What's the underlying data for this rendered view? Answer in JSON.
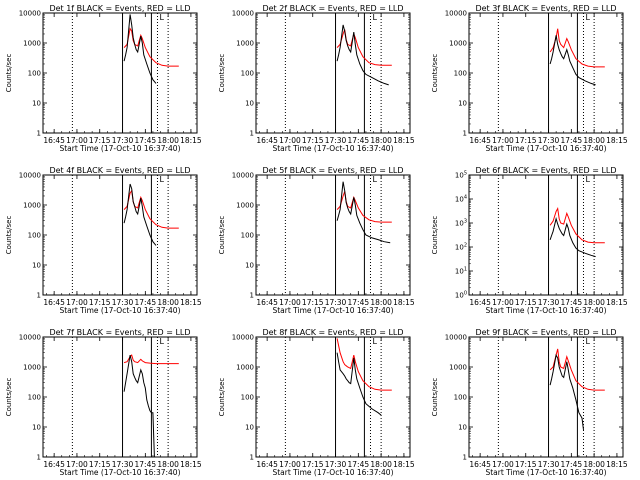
{
  "chart_data": [
    {
      "type": "line",
      "title": "Det 1f BLACK = Events, RED = LLD",
      "xlabel": "Start Time (17-Oct-10 16:37:40)",
      "ylabel": "Counts/sec",
      "x_ticks": [
        "16:45",
        "17:00",
        "17:15",
        "17:30",
        "17:45",
        "18:00",
        "18:15"
      ],
      "y_ticks": [
        "1",
        "10",
        "100",
        "1000",
        "10000"
      ],
      "ylim": [
        1,
        10000
      ],
      "yscale": "log",
      "corner_label": "L",
      "vlines_solid": [
        "17:30",
        "17:49"
      ],
      "vlines_dotted": [
        "16:57",
        "17:53",
        "18:00"
      ],
      "series": [
        {
          "color": "#000000",
          "x": [
            "17:31",
            "17:32",
            "17:33",
            "17:35",
            "17:36",
            "17:37",
            "17:38",
            "17:39",
            "17:40",
            "17:42",
            "17:43",
            "17:44",
            "17:46",
            "17:48",
            "17:50",
            "17:52"
          ],
          "y": [
            250,
            400,
            700,
            9000,
            4000,
            1500,
            900,
            600,
            500,
            1700,
            1000,
            400,
            200,
            100,
            60,
            45
          ]
        },
        {
          "color": "#ff0000",
          "x": [
            "17:31",
            "17:33",
            "17:35",
            "17:36",
            "17:37",
            "17:38",
            "17:40",
            "17:42",
            "17:43",
            "17:45",
            "17:48",
            "17:52",
            "17:56",
            "18:00",
            "18:04",
            "18:07"
          ],
          "y": [
            700,
            900,
            3000,
            2500,
            1200,
            900,
            800,
            1800,
            1400,
            700,
            350,
            220,
            180,
            170,
            170,
            170
          ]
        }
      ]
    },
    {
      "type": "line",
      "title": "Det 2f BLACK = Events, RED = LLD",
      "xlabel": "Start Time (17-Oct-10 16:37:40)",
      "ylabel": "Counts/sec",
      "x_ticks": [
        "16:45",
        "17:00",
        "17:15",
        "17:30",
        "17:45",
        "18:00",
        "18:15"
      ],
      "y_ticks": [
        "1",
        "10",
        "100",
        "1000",
        "10000"
      ],
      "ylim": [
        1,
        10000
      ],
      "yscale": "log",
      "corner_label": "L",
      "vlines_solid": [
        "17:30",
        "17:49"
      ],
      "vlines_dotted": [
        "16:57",
        "17:53",
        "18:00"
      ],
      "series": [
        {
          "color": "#000000",
          "x": [
            "17:31",
            "17:32",
            "17:33",
            "17:35",
            "17:36",
            "17:37",
            "17:38",
            "17:39",
            "17:40",
            "17:42",
            "17:43",
            "17:44",
            "17:46",
            "17:48",
            "17:50",
            "17:54",
            "17:58",
            "18:02",
            "18:05"
          ],
          "y": [
            250,
            400,
            700,
            4000,
            2500,
            1200,
            800,
            600,
            500,
            2300,
            900,
            400,
            200,
            120,
            90,
            70,
            55,
            45,
            40
          ]
        },
        {
          "color": "#ff0000",
          "x": [
            "17:31",
            "17:33",
            "17:35",
            "17:36",
            "17:37",
            "17:38",
            "17:40",
            "17:42",
            "17:43",
            "17:45",
            "17:48",
            "17:52",
            "17:56",
            "18:00",
            "18:04",
            "18:07"
          ],
          "y": [
            700,
            900,
            2000,
            2800,
            1300,
            900,
            800,
            2000,
            1500,
            700,
            350,
            220,
            190,
            180,
            180,
            180
          ]
        }
      ]
    },
    {
      "type": "line",
      "title": "Det 3f BLACK = Events, RED = LLD",
      "xlabel": "Start Time (17-Oct-10 16:37:40)",
      "ylabel": "Counts/sec",
      "x_ticks": [
        "16:45",
        "17:00",
        "17:15",
        "17:30",
        "17:45",
        "18:00",
        "18:15"
      ],
      "y_ticks": [
        "1",
        "10",
        "100",
        "1000",
        "10000"
      ],
      "ylim": [
        1,
        10000
      ],
      "yscale": "log",
      "corner_label": "L",
      "vlines_solid": [
        "17:30",
        "17:49"
      ],
      "vlines_dotted": [
        "16:57",
        "17:53",
        "18:00"
      ],
      "series": [
        {
          "color": "#000000",
          "x": [
            "17:31",
            "17:32",
            "17:33",
            "17:35",
            "17:36",
            "17:37",
            "17:38",
            "17:39",
            "17:40",
            "17:42",
            "17:43",
            "17:44",
            "17:46",
            "17:48",
            "17:50",
            "17:54",
            "17:58",
            "18:01"
          ],
          "y": [
            200,
            300,
            500,
            1800,
            900,
            600,
            450,
            350,
            300,
            600,
            400,
            250,
            150,
            90,
            70,
            55,
            45,
            40
          ]
        },
        {
          "color": "#ff0000",
          "x": [
            "17:31",
            "17:33",
            "17:35",
            "17:36",
            "17:37",
            "17:38",
            "17:40",
            "17:42",
            "17:43",
            "17:45",
            "17:48",
            "17:52",
            "17:56",
            "18:00",
            "18:04",
            "18:07"
          ],
          "y": [
            500,
            700,
            1500,
            3000,
            1200,
            900,
            700,
            1400,
            1100,
            600,
            300,
            200,
            170,
            160,
            160,
            160
          ]
        }
      ]
    },
    {
      "type": "line",
      "title": "Det 4f BLACK = Events, RED = LLD",
      "xlabel": "Start Time (17-Oct-10 16:37:40)",
      "ylabel": "Counts/sec",
      "x_ticks": [
        "16:45",
        "17:00",
        "17:15",
        "17:30",
        "17:45",
        "18:00",
        "18:15"
      ],
      "y_ticks": [
        "1",
        "10",
        "100",
        "1000",
        "10000"
      ],
      "ylim": [
        1,
        10000
      ],
      "yscale": "log",
      "corner_label": "L",
      "vlines_solid": [
        "17:30",
        "17:49"
      ],
      "vlines_dotted": [
        "16:57",
        "17:53",
        "18:00"
      ],
      "series": [
        {
          "color": "#000000",
          "x": [
            "17:31",
            "17:32",
            "17:33",
            "17:35",
            "17:36",
            "17:37",
            "17:38",
            "17:39",
            "17:40",
            "17:42",
            "17:43",
            "17:44",
            "17:46",
            "17:48",
            "17:50",
            "17:52"
          ],
          "y": [
            250,
            400,
            700,
            5000,
            3500,
            1300,
            900,
            600,
            500,
            1700,
            900,
            400,
            200,
            100,
            60,
            45
          ]
        },
        {
          "color": "#ff0000",
          "x": [
            "17:31",
            "17:33",
            "17:35",
            "17:36",
            "17:37",
            "17:38",
            "17:40",
            "17:42",
            "17:43",
            "17:45",
            "17:48",
            "17:52",
            "17:56",
            "18:00",
            "18:04",
            "18:07"
          ],
          "y": [
            700,
            900,
            2500,
            3000,
            1300,
            900,
            800,
            1800,
            1400,
            700,
            350,
            220,
            180,
            170,
            170,
            170
          ]
        }
      ]
    },
    {
      "type": "line",
      "title": "Det 5f BLACK = Events, RED = LLD",
      "xlabel": "Start Time (17-Oct-10 16:37:40)",
      "ylabel": "Counts/sec",
      "x_ticks": [
        "16:45",
        "17:00",
        "17:15",
        "17:30",
        "17:45",
        "18:00",
        "18:15"
      ],
      "y_ticks": [
        "1",
        "10",
        "100",
        "1000",
        "10000"
      ],
      "ylim": [
        1,
        10000
      ],
      "yscale": "log",
      "corner_label": "L",
      "vlines_solid": [
        "17:30",
        "17:49"
      ],
      "vlines_dotted": [
        "16:57",
        "17:53",
        "18:00"
      ],
      "series": [
        {
          "color": "#000000",
          "x": [
            "17:31",
            "17:32",
            "17:33",
            "17:35",
            "17:36",
            "17:37",
            "17:38",
            "17:39",
            "17:40",
            "17:42",
            "17:43",
            "17:44",
            "17:46",
            "17:48",
            "17:50",
            "17:54",
            "17:58",
            "18:02",
            "18:06"
          ],
          "y": [
            300,
            450,
            700,
            6000,
            3000,
            1200,
            800,
            600,
            500,
            1800,
            1000,
            450,
            250,
            150,
            100,
            80,
            70,
            60,
            55
          ]
        },
        {
          "color": "#ff0000",
          "x": [
            "17:31",
            "17:33",
            "17:35",
            "17:36",
            "17:37",
            "17:38",
            "17:40",
            "17:42",
            "17:43",
            "17:45",
            "17:48",
            "17:52",
            "17:56",
            "18:00",
            "18:04",
            "18:07"
          ],
          "y": [
            700,
            900,
            2000,
            2800,
            1300,
            900,
            800,
            1800,
            1400,
            800,
            450,
            320,
            280,
            270,
            270,
            270
          ]
        }
      ]
    },
    {
      "type": "line",
      "title": "Det 6f BLACK = Events, RED = LLD",
      "xlabel": "Start Time (17-Oct-10 16:37:40)",
      "ylabel": "Counts/sec",
      "x_ticks": [
        "16:45",
        "17:00",
        "17:15",
        "17:30",
        "17:45",
        "18:00",
        "18:15"
      ],
      "y_ticks": [
        "10^0",
        "10^1",
        "10^2",
        "10^3",
        "10^4",
        "10^5"
      ],
      "ylim": [
        1,
        100000
      ],
      "yscale": "log",
      "corner_label": "L",
      "vlines_solid": [
        "17:30",
        "17:49"
      ],
      "vlines_dotted": [
        "16:57",
        "17:53",
        "18:00"
      ],
      "series": [
        {
          "color": "#000000",
          "x": [
            "17:31",
            "17:32",
            "17:33",
            "17:35",
            "17:36",
            "17:37",
            "17:38",
            "17:39",
            "17:40",
            "17:42",
            "17:43",
            "17:44",
            "17:46",
            "17:48",
            "17:50",
            "17:54",
            "17:58",
            "18:01"
          ],
          "y": [
            200,
            300,
            450,
            1500,
            900,
            600,
            450,
            350,
            300,
            900,
            600,
            300,
            150,
            90,
            70,
            55,
            45,
            40
          ]
        },
        {
          "color": "#ff0000",
          "x": [
            "17:31",
            "17:33",
            "17:35",
            "17:36",
            "17:37",
            "17:38",
            "17:40",
            "17:42",
            "17:43",
            "17:45",
            "17:48",
            "17:52",
            "17:56",
            "18:00",
            "18:04",
            "18:07"
          ],
          "y": [
            800,
            1200,
            3000,
            4000,
            1500,
            1000,
            900,
            2500,
            1800,
            800,
            350,
            200,
            160,
            150,
            150,
            150
          ]
        }
      ]
    },
    {
      "type": "line",
      "title": "Det 7f BLACK = Events, RED = LLD",
      "xlabel": "Start Time (17-Oct-10 16:37:40)",
      "ylabel": "Counts/sec",
      "x_ticks": [
        "16:45",
        "17:00",
        "17:15",
        "17:30",
        "17:45",
        "18:00",
        "18:15"
      ],
      "y_ticks": [
        "1",
        "10",
        "100",
        "1000",
        "10000"
      ],
      "ylim": [
        1,
        10000
      ],
      "yscale": "log",
      "corner_label": "L",
      "vlines_solid": [
        "17:30",
        "17:49"
      ],
      "vlines_dotted": [
        "16:57",
        "17:53",
        "18:00"
      ],
      "series": [
        {
          "color": "#000000",
          "x": [
            "17:31",
            "17:32",
            "17:33",
            "17:35",
            "17:36",
            "17:37",
            "17:38",
            "17:39",
            "17:40",
            "17:42",
            "17:43",
            "17:44",
            "17:45",
            "17:46",
            "17:47",
            "17:48",
            "17:49",
            "17:50",
            "17:51"
          ],
          "y": [
            150,
            300,
            600,
            2500,
            1500,
            600,
            450,
            350,
            300,
            800,
            600,
            300,
            200,
            80,
            50,
            35,
            30,
            30,
            1
          ]
        },
        {
          "color": "#ff0000",
          "x": [
            "17:31",
            "17:33",
            "17:35",
            "17:36",
            "17:37",
            "17:38",
            "17:40",
            "17:42",
            "17:43",
            "17:45",
            "17:48",
            "17:52",
            "17:56",
            "18:00",
            "18:04",
            "18:07"
          ],
          "y": [
            1400,
            1500,
            2200,
            2500,
            1700,
            1500,
            1400,
            1800,
            1600,
            1400,
            1350,
            1300,
            1300,
            1300,
            1300,
            1300
          ]
        }
      ]
    },
    {
      "type": "line",
      "title": "Det 8f BLACK = Events, RED = LLD",
      "xlabel": "Start Time (17-Oct-10 16:37:40)",
      "ylabel": "Counts/sec",
      "x_ticks": [
        "16:45",
        "17:00",
        "17:15",
        "17:30",
        "17:45",
        "18:00",
        "18:15"
      ],
      "y_ticks": [
        "1",
        "10",
        "100",
        "1000",
        "10000"
      ],
      "ylim": [
        1,
        10000
      ],
      "yscale": "log",
      "corner_label": "L",
      "vlines_solid": [
        "17:30",
        "17:49"
      ],
      "vlines_dotted": [
        "16:57",
        "17:53",
        "18:00"
      ],
      "series": [
        {
          "color": "#000000",
          "x": [
            "17:31",
            "17:32",
            "17:33",
            "17:35",
            "17:36",
            "17:37",
            "17:38",
            "17:39",
            "17:40",
            "17:42",
            "17:43",
            "17:44",
            "17:46",
            "17:48",
            "17:50",
            "17:54",
            "17:58",
            "18:00"
          ],
          "y": [
            3000,
            1500,
            800,
            600,
            500,
            400,
            350,
            300,
            280,
            2000,
            800,
            400,
            200,
            100,
            60,
            40,
            30,
            25
          ]
        },
        {
          "color": "#ff0000",
          "x": [
            "17:31",
            "17:33",
            "17:35",
            "17:36",
            "17:37",
            "17:38",
            "17:40",
            "17:42",
            "17:43",
            "17:45",
            "17:48",
            "17:52",
            "17:56",
            "18:00",
            "18:04",
            "18:07"
          ],
          "y": [
            9000,
            3000,
            1500,
            1200,
            1100,
            1000,
            900,
            2500,
            1500,
            700,
            350,
            220,
            180,
            170,
            170,
            170
          ]
        }
      ]
    },
    {
      "type": "line",
      "title": "Det 9f BLACK = Events, RED = LLD",
      "xlabel": "Start Time (17-Oct-10 16:37:40)",
      "ylabel": "Counts/sec",
      "x_ticks": [
        "16:45",
        "17:00",
        "17:15",
        "17:30",
        "17:45",
        "18:00",
        "18:15"
      ],
      "y_ticks": [
        "1",
        "10",
        "100",
        "1000",
        "10000"
      ],
      "ylim": [
        1,
        10000
      ],
      "yscale": "log",
      "corner_label": "L",
      "vlines_solid": [
        "17:30",
        "17:49"
      ],
      "vlines_dotted": [
        "16:57",
        "17:53",
        "18:00"
      ],
      "series": [
        {
          "color": "#000000",
          "x": [
            "17:31",
            "17:32",
            "17:33",
            "17:35",
            "17:36",
            "17:37",
            "17:38",
            "17:39",
            "17:40",
            "17:42",
            "17:43",
            "17:44",
            "17:46",
            "17:48",
            "17:50",
            "17:52",
            "17:53"
          ],
          "y": [
            250,
            400,
            700,
            2500,
            2000,
            1000,
            700,
            500,
            450,
            1500,
            800,
            400,
            200,
            80,
            30,
            20,
            8
          ]
        },
        {
          "color": "#ff0000",
          "x": [
            "17:31",
            "17:33",
            "17:35",
            "17:36",
            "17:37",
            "17:38",
            "17:40",
            "17:42",
            "17:43",
            "17:45",
            "17:48",
            "17:52",
            "17:56",
            "18:00",
            "18:04",
            "18:07"
          ],
          "y": [
            800,
            1000,
            2500,
            4000,
            1500,
            1000,
            900,
            2200,
            1600,
            800,
            350,
            220,
            180,
            170,
            170,
            170
          ]
        }
      ]
    }
  ]
}
